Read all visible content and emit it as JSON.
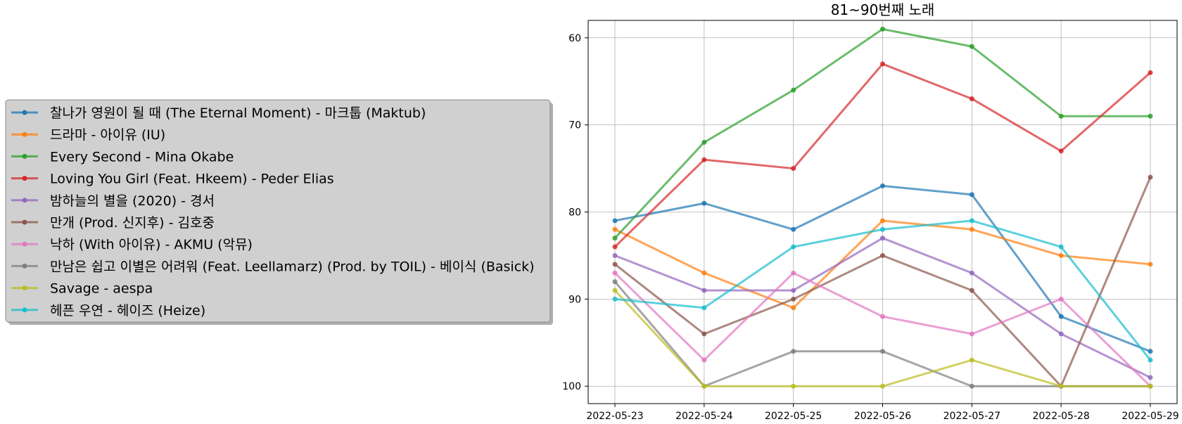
{
  "chart_data": {
    "type": "line",
    "title": "81~90번째 노래",
    "xlabel": "",
    "ylabel": "",
    "x": [
      "2022-05-23",
      "2022-05-24",
      "2022-05-25",
      "2022-05-26",
      "2022-05-27",
      "2022-05-28",
      "2022-05-29"
    ],
    "ylim": [
      102,
      58
    ],
    "y_inverted": true,
    "yticks": [
      60,
      70,
      80,
      90,
      100
    ],
    "grid": true,
    "legend_placement": "outside-left",
    "series": [
      {
        "name": "찰나가 영원이 될 때 (The Eternal Moment) - 마크툽 (Maktub)",
        "color": "#1f77b4",
        "values": [
          81,
          79,
          82,
          77,
          78,
          92,
          96
        ]
      },
      {
        "name": "드라마 - 아이유 (IU)",
        "color": "#ff7f0e",
        "values": [
          82,
          87,
          91,
          81,
          82,
          85,
          86
        ]
      },
      {
        "name": "Every Second - Mina Okabe",
        "color": "#2ca02c",
        "values": [
          83,
          72,
          66,
          59,
          61,
          69,
          69
        ]
      },
      {
        "name": "Loving You Girl (Feat. Hkeem) - Peder Elias",
        "color": "#d62728",
        "values": [
          84,
          74,
          75,
          63,
          67,
          73,
          64
        ]
      },
      {
        "name": "밤하늘의 별을 (2020) - 경서",
        "color": "#9467bd",
        "values": [
          85,
          89,
          89,
          83,
          87,
          94,
          99
        ]
      },
      {
        "name": "만개 (Prod. 신지후) - 김호중",
        "color": "#8c564b",
        "values": [
          86,
          94,
          90,
          85,
          89,
          100,
          76
        ]
      },
      {
        "name": "낙하 (With 아이유) - AKMU (악뮤)",
        "color": "#e377c2",
        "values": [
          87,
          97,
          87,
          92,
          94,
          90,
          100
        ]
      },
      {
        "name": "만남은 쉽고 이별은 어려워 (Feat. Leellamarz) (Prod. by TOIL) - 베이식 (Basick)",
        "color": "#7f7f7f",
        "values": [
          88,
          100,
          96,
          96,
          100,
          100,
          100
        ]
      },
      {
        "name": "Savage - aespa",
        "color": "#bcbd22",
        "values": [
          89,
          100,
          100,
          100,
          97,
          100,
          100
        ]
      },
      {
        "name": "헤픈 우연 - 헤이즈 (Heize)",
        "color": "#17becf",
        "values": [
          90,
          91,
          84,
          82,
          81,
          84,
          97
        ]
      }
    ]
  }
}
